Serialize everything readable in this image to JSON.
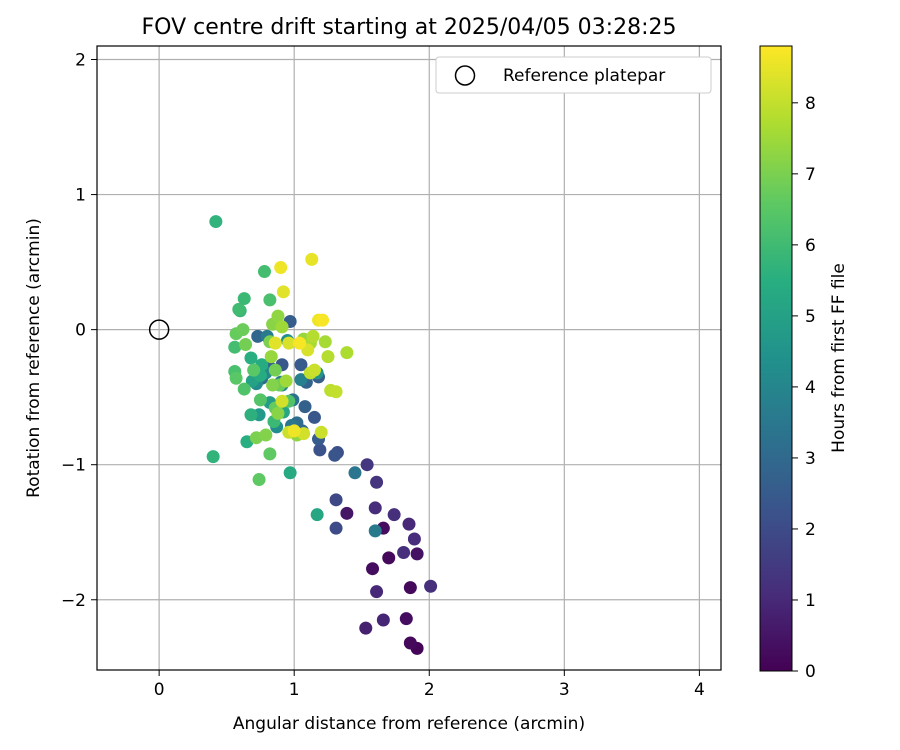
{
  "chart_data": {
    "type": "scatter",
    "title": "FOV centre drift starting at 2025/04/05 03:28:25",
    "xlabel": "Angular distance from reference (arcmin)",
    "ylabel": "Rotation from reference (arcmin)",
    "xlim": [
      -0.46,
      4.16
    ],
    "ylim": [
      -2.52,
      2.1
    ],
    "xticks": [
      0,
      1,
      2,
      3,
      4
    ],
    "yticks": [
      -2,
      -1,
      0,
      1,
      2
    ],
    "xtick_labels": [
      "0",
      "1",
      "2",
      "3",
      "4"
    ],
    "ytick_labels": [
      "−2",
      "−1",
      "0",
      "1",
      "2"
    ],
    "grid": true,
    "legend": {
      "placement": "top-right",
      "entries": [
        {
          "label": "Reference platepar",
          "marker": "open-circle"
        }
      ]
    },
    "reference_point": {
      "x": 0,
      "y": 0
    },
    "colorbar": {
      "label": "Hours from first FF file",
      "colormap": "viridis",
      "range": [
        0,
        8.8
      ],
      "ticks": [
        0,
        1,
        2,
        3,
        4,
        5,
        6,
        7,
        8
      ],
      "tick_labels": [
        "0",
        "1",
        "2",
        "3",
        "4",
        "5",
        "6",
        "7",
        "8"
      ]
    },
    "series": [
      {
        "points": [
          {
            "x": 1.91,
            "y": -2.36,
            "t": 0.1
          },
          {
            "x": 1.86,
            "y": -2.32,
            "t": 0.2
          },
          {
            "x": 1.83,
            "y": -2.14,
            "t": 0.3
          },
          {
            "x": 1.86,
            "y": -1.91,
            "t": 0.2
          },
          {
            "x": 1.58,
            "y": -1.77,
            "t": 0.3
          },
          {
            "x": 1.7,
            "y": -1.69,
            "t": 0.2
          },
          {
            "x": 1.91,
            "y": -1.66,
            "t": 0.4
          },
          {
            "x": 1.66,
            "y": -1.47,
            "t": 0.3
          },
          {
            "x": 1.39,
            "y": -1.36,
            "t": 0.5
          },
          {
            "x": 1.53,
            "y": -2.21,
            "t": 0.8
          },
          {
            "x": 1.66,
            "y": -2.15,
            "t": 0.9
          },
          {
            "x": 1.61,
            "y": -1.94,
            "t": 1.0
          },
          {
            "x": 1.81,
            "y": -1.65,
            "t": 1.2
          },
          {
            "x": 1.89,
            "y": -1.55,
            "t": 1.1
          },
          {
            "x": 1.85,
            "y": -1.44,
            "t": 1.0
          },
          {
            "x": 1.74,
            "y": -1.37,
            "t": 1.2
          },
          {
            "x": 1.6,
            "y": -1.32,
            "t": 1.1
          },
          {
            "x": 1.61,
            "y": -1.13,
            "t": 1.3
          },
          {
            "x": 1.54,
            "y": -1.0,
            "t": 1.4
          },
          {
            "x": 2.01,
            "y": -1.9,
            "t": 1.2
          },
          {
            "x": 1.31,
            "y": -1.26,
            "t": 1.9
          },
          {
            "x": 1.31,
            "y": -1.47,
            "t": 2.0
          },
          {
            "x": 1.32,
            "y": -0.91,
            "t": 2.1
          },
          {
            "x": 1.3,
            "y": -0.93,
            "t": 2.3
          },
          {
            "x": 1.19,
            "y": -0.89,
            "t": 2.2
          },
          {
            "x": 1.18,
            "y": -0.81,
            "t": 2.5
          },
          {
            "x": 1.15,
            "y": -0.65,
            "t": 2.4
          },
          {
            "x": 1.18,
            "y": -0.35,
            "t": 2.6
          },
          {
            "x": 1.08,
            "y": -0.57,
            "t": 2.7
          },
          {
            "x": 1.09,
            "y": -0.39,
            "t": 2.8
          },
          {
            "x": 1.05,
            "y": -0.26,
            "t": 2.5
          },
          {
            "x": 0.97,
            "y": 0.06,
            "t": 2.6
          },
          {
            "x": 0.91,
            "y": -0.26,
            "t": 2.4
          },
          {
            "x": 0.82,
            "y": -0.28,
            "t": 2.8
          },
          {
            "x": 0.73,
            "y": -0.05,
            "t": 2.9
          },
          {
            "x": 0.76,
            "y": -0.36,
            "t": 3.0
          },
          {
            "x": 1.06,
            "y": -0.75,
            "t": 3.0
          },
          {
            "x": 1.02,
            "y": -0.69,
            "t": 3.1
          },
          {
            "x": 1.45,
            "y": -1.06,
            "t": 3.4
          },
          {
            "x": 1.6,
            "y": -1.49,
            "t": 3.6
          },
          {
            "x": 0.98,
            "y": -0.71,
            "t": 3.4
          },
          {
            "x": 0.99,
            "y": -0.52,
            "t": 3.3
          },
          {
            "x": 0.8,
            "y": -0.05,
            "t": 3.6
          },
          {
            "x": 0.9,
            "y": -0.39,
            "t": 3.7
          },
          {
            "x": 1.05,
            "y": -0.37,
            "t": 3.8
          },
          {
            "x": 0.91,
            "y": -0.41,
            "t": 4.0
          },
          {
            "x": 0.79,
            "y": -0.32,
            "t": 4.1
          },
          {
            "x": 0.72,
            "y": -0.4,
            "t": 4.2
          },
          {
            "x": 0.87,
            "y": -0.72,
            "t": 4.3
          },
          {
            "x": 0.95,
            "y": -0.08,
            "t": 4.4
          },
          {
            "x": 1.17,
            "y": -0.32,
            "t": 4.5
          },
          {
            "x": 0.74,
            "y": -0.63,
            "t": 4.7
          },
          {
            "x": 0.82,
            "y": -0.54,
            "t": 4.8
          },
          {
            "x": 0.69,
            "y": -0.38,
            "t": 5.0
          },
          {
            "x": 1.17,
            "y": -1.37,
            "t": 5.2
          },
          {
            "x": 0.97,
            "y": -1.06,
            "t": 5.3
          },
          {
            "x": 0.92,
            "y": -0.61,
            "t": 5.2
          },
          {
            "x": 0.75,
            "y": -0.34,
            "t": 5.4
          },
          {
            "x": 0.68,
            "y": -0.21,
            "t": 5.5
          },
          {
            "x": 0.76,
            "y": -0.26,
            "t": 5.4
          },
          {
            "x": 0.65,
            "y": -0.83,
            "t": 5.5
          },
          {
            "x": 0.68,
            "y": -0.63,
            "t": 5.6
          },
          {
            "x": 0.42,
            "y": 0.8,
            "t": 5.7
          },
          {
            "x": 0.4,
            "y": -0.94,
            "t": 5.7
          },
          {
            "x": 0.6,
            "y": 0.14,
            "t": 5.8
          },
          {
            "x": 0.63,
            "y": 0.23,
            "t": 5.9
          },
          {
            "x": 0.59,
            "y": 0.15,
            "t": 6.0
          },
          {
            "x": 0.85,
            "y": -0.68,
            "t": 5.9
          },
          {
            "x": 0.78,
            "y": 0.43,
            "t": 6.1
          },
          {
            "x": 0.82,
            "y": 0.22,
            "t": 6.2
          },
          {
            "x": 0.56,
            "y": -0.13,
            "t": 6.1
          },
          {
            "x": 0.56,
            "y": -0.31,
            "t": 6.2
          },
          {
            "x": 0.63,
            "y": -0.44,
            "t": 6.3
          },
          {
            "x": 0.75,
            "y": -0.52,
            "t": 6.4
          },
          {
            "x": 0.96,
            "y": -0.53,
            "t": 6.3
          },
          {
            "x": 0.57,
            "y": -0.36,
            "t": 6.5
          },
          {
            "x": 0.7,
            "y": -0.3,
            "t": 6.5
          },
          {
            "x": 0.74,
            "y": -1.11,
            "t": 6.6
          },
          {
            "x": 0.82,
            "y": -0.92,
            "t": 6.6
          },
          {
            "x": 0.86,
            "y": -0.58,
            "t": 6.7
          },
          {
            "x": 0.89,
            "y": -0.41,
            "t": 6.8
          },
          {
            "x": 0.57,
            "y": -0.03,
            "t": 6.7
          },
          {
            "x": 0.62,
            "y": 0.0,
            "t": 6.8
          },
          {
            "x": 0.64,
            "y": -0.11,
            "t": 6.9
          },
          {
            "x": 0.86,
            "y": -0.3,
            "t": 6.9
          },
          {
            "x": 0.82,
            "y": -0.09,
            "t": 7.0
          },
          {
            "x": 0.72,
            "y": -0.8,
            "t": 7.0
          },
          {
            "x": 0.79,
            "y": -0.78,
            "t": 7.1
          },
          {
            "x": 0.84,
            "y": -0.41,
            "t": 7.1
          },
          {
            "x": 0.88,
            "y": -0.62,
            "t": 7.2
          },
          {
            "x": 0.84,
            "y": 0.04,
            "t": 7.2
          },
          {
            "x": 0.88,
            "y": 0.1,
            "t": 7.3
          },
          {
            "x": 1.02,
            "y": -0.78,
            "t": 7.3
          },
          {
            "x": 1.07,
            "y": -0.07,
            "t": 7.4
          },
          {
            "x": 0.83,
            "y": -0.2,
            "t": 7.4
          },
          {
            "x": 0.94,
            "y": -0.38,
            "t": 7.5
          },
          {
            "x": 0.91,
            "y": 0.02,
            "t": 7.5
          },
          {
            "x": 1.12,
            "y": -0.1,
            "t": 7.6
          },
          {
            "x": 1.23,
            "y": -0.09,
            "t": 7.6
          },
          {
            "x": 1.39,
            "y": -0.17,
            "t": 7.7
          },
          {
            "x": 1.25,
            "y": -0.2,
            "t": 7.8
          },
          {
            "x": 1.14,
            "y": -0.05,
            "t": 7.8
          },
          {
            "x": 1.27,
            "y": -0.45,
            "t": 7.9
          },
          {
            "x": 1.31,
            "y": -0.46,
            "t": 8.0
          },
          {
            "x": 1.12,
            "y": -0.32,
            "t": 8.0
          },
          {
            "x": 1.15,
            "y": -0.3,
            "t": 8.1
          },
          {
            "x": 1.2,
            "y": -0.76,
            "t": 8.1
          },
          {
            "x": 0.96,
            "y": -0.76,
            "t": 8.1
          },
          {
            "x": 1.07,
            "y": -0.77,
            "t": 8.2
          },
          {
            "x": 0.91,
            "y": -0.53,
            "t": 8.2
          },
          {
            "x": 0.96,
            "y": -0.1,
            "t": 8.3
          },
          {
            "x": 1.1,
            "y": -0.15,
            "t": 8.3
          },
          {
            "x": 0.86,
            "y": -0.1,
            "t": 8.4
          },
          {
            "x": 0.92,
            "y": 0.28,
            "t": 8.4
          },
          {
            "x": 1.13,
            "y": 0.52,
            "t": 8.5
          },
          {
            "x": 0.9,
            "y": 0.46,
            "t": 8.6
          },
          {
            "x": 1.18,
            "y": 0.07,
            "t": 8.6
          },
          {
            "x": 1.21,
            "y": 0.07,
            "t": 8.7
          },
          {
            "x": 1.04,
            "y": -0.1,
            "t": 8.7
          },
          {
            "x": 1.0,
            "y": -0.75,
            "t": 8.6
          }
        ]
      }
    ]
  }
}
